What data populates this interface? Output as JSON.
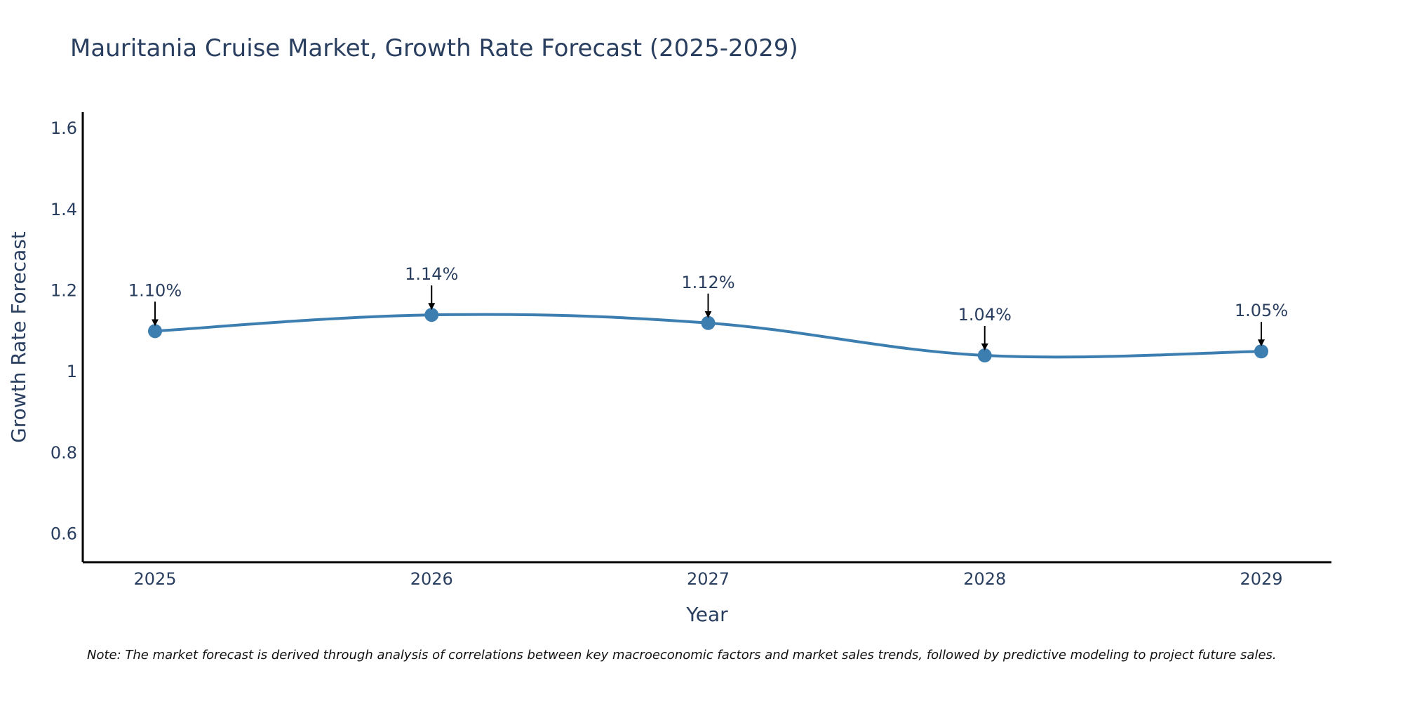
{
  "chart_data": {
    "type": "line",
    "title": "Mauritania Cruise Market, Growth Rate Forecast (2025-2029)",
    "xlabel": "Year",
    "ylabel": "Growth Rate Forecast",
    "categories": [
      "2025",
      "2026",
      "2027",
      "2028",
      "2029"
    ],
    "series": [
      {
        "name": "Growth Rate Forecast",
        "values": [
          1.1,
          1.14,
          1.12,
          1.04,
          1.05
        ],
        "labels": [
          "1.10%",
          "1.14%",
          "1.12%",
          "1.04%",
          "1.05%"
        ]
      }
    ],
    "ylim": [
      0.53,
      1.64
    ],
    "yticks": [
      0.6,
      0.8,
      1.0,
      1.2,
      1.4,
      1.6
    ],
    "ytick_labels": [
      "0.6",
      "0.8",
      "1",
      "1.2",
      "1.4",
      "1.6"
    ],
    "grid": false,
    "line_color": "#3d7eb0",
    "marker_color": "#3d7eb0",
    "arrow_color": "#000000",
    "note": "Note: The market forecast is derived through analysis of correlations between key macroeconomic factors and market sales trends, followed by predictive modeling to project future sales."
  }
}
